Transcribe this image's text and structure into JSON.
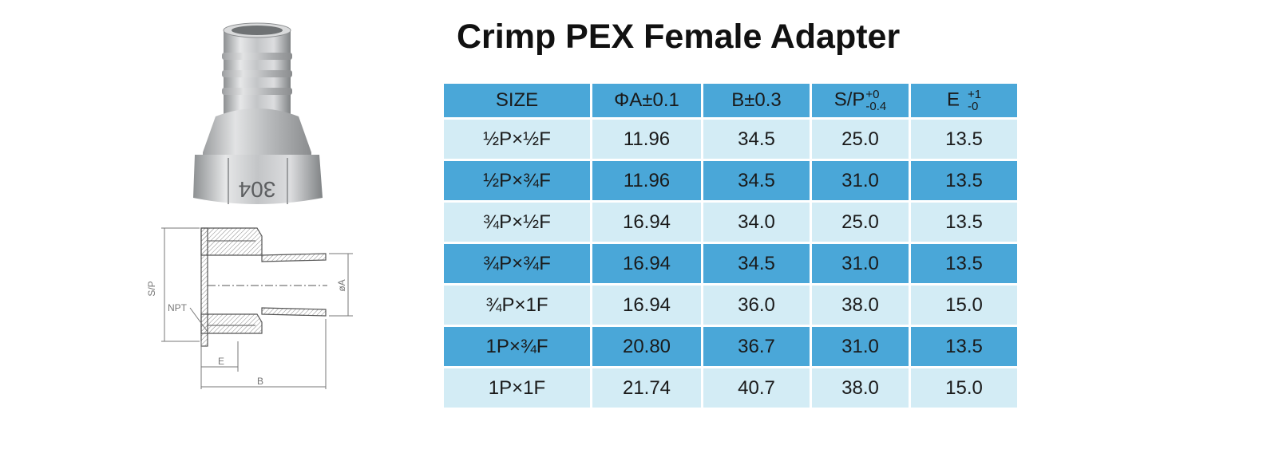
{
  "title": "Crimp PEX Female Adapter",
  "product_photo": {
    "stamp": "304",
    "icon": "pex-female-adapter-photo"
  },
  "drawing": {
    "icon": "cross-section-drawing",
    "labels": {
      "sp": "S/P",
      "npt": "NPT",
      "phi_a": "øA",
      "e": "E",
      "b": "B"
    }
  },
  "table": {
    "headers": {
      "size": "SIZE",
      "phi_a": "ΦA±0.1",
      "b": "B±0.3",
      "sp": "S/P",
      "sp_upper": "+0",
      "sp_lower": "-0.4",
      "e": "E",
      "e_upper": "+1",
      "e_lower": "-0"
    },
    "rows": [
      {
        "size": "½P×½F",
        "phi_a": "11.96",
        "b": "34.5",
        "sp": "25.0",
        "e": "13.5"
      },
      {
        "size": "½P×¾F",
        "phi_a": "11.96",
        "b": "34.5",
        "sp": "31.0",
        "e": "13.5"
      },
      {
        "size": "¾P×½F",
        "phi_a": "16.94",
        "b": "34.0",
        "sp": "25.0",
        "e": "13.5"
      },
      {
        "size": "¾P×¾F",
        "phi_a": "16.94",
        "b": "34.5",
        "sp": "31.0",
        "e": "13.5"
      },
      {
        "size": "¾P×1F",
        "phi_a": "16.94",
        "b": "36.0",
        "sp": "38.0",
        "e": "15.0"
      },
      {
        "size": "1P×¾F",
        "phi_a": "20.80",
        "b": "36.7",
        "sp": "31.0",
        "e": "13.5"
      },
      {
        "size": "1P×1F",
        "phi_a": "21.74",
        "b": "40.7",
        "sp": "38.0",
        "e": "15.0"
      }
    ]
  },
  "colors": {
    "header_blue": "#4aa7d8",
    "row_light": "#d3ecf5",
    "metal": "#c4c6c8"
  }
}
